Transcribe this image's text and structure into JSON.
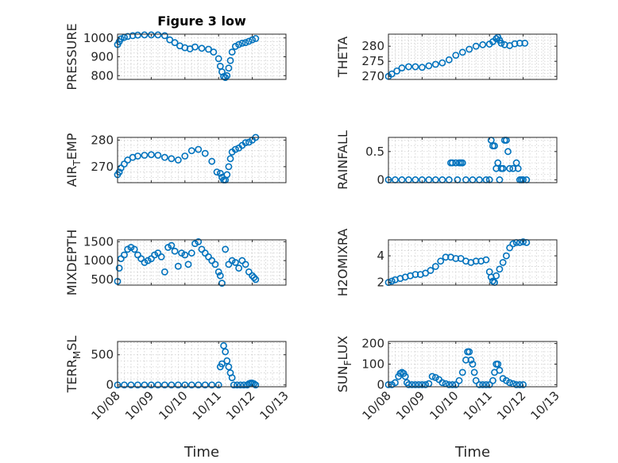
{
  "figure": {
    "background": "#ffffff",
    "marker_color": "#0072bd",
    "grid": true
  },
  "chart_data": [
    {
      "id": "pressure",
      "type": "scatter",
      "title": "Figure 3 low",
      "ylabel": "PRESSURE",
      "ylabel_sub": "",
      "ylim": [
        780,
        1020
      ],
      "yticks": [
        800,
        900,
        1000
      ],
      "xlim": [
        0,
        5
      ],
      "xticks": [
        "10/08",
        "10/09",
        "10/10",
        "10/11",
        "10/12",
        "10/13"
      ],
      "xlabel": "",
      "x": [
        0,
        0.05,
        0.1,
        0.2,
        0.3,
        0.45,
        0.6,
        0.8,
        1.0,
        1.2,
        1.4,
        1.55,
        1.7,
        1.85,
        2.0,
        2.15,
        2.3,
        2.5,
        2.7,
        2.85,
        3.0,
        3.05,
        3.1,
        3.15,
        3.2,
        3.25,
        3.3,
        3.35,
        3.4,
        3.5,
        3.6,
        3.7,
        3.8,
        3.9,
        4.0,
        4.1
      ],
      "y": [
        965,
        980,
        995,
        1003,
        1008,
        1012,
        1015,
        1016,
        1016,
        1016,
        1012,
        990,
        975,
        958,
        948,
        942,
        952,
        945,
        940,
        925,
        890,
        850,
        820,
        795,
        790,
        800,
        840,
        880,
        925,
        955,
        965,
        972,
        975,
        982,
        990,
        997
      ]
    },
    {
      "id": "theta",
      "type": "scatter",
      "title": "",
      "ylabel": "THETA",
      "ylabel_sub": "",
      "ylim": [
        269,
        284
      ],
      "yticks": [
        270,
        275,
        280
      ],
      "xlim": [
        0,
        5
      ],
      "xticks": [
        "10/08",
        "10/09",
        "10/10",
        "10/11",
        "10/12",
        "10/13"
      ],
      "xlabel": "",
      "x": [
        0,
        0.1,
        0.25,
        0.4,
        0.6,
        0.8,
        1.0,
        1.2,
        1.4,
        1.6,
        1.8,
        2.0,
        2.2,
        2.4,
        2.6,
        2.8,
        3.0,
        3.1,
        3.2,
        3.25,
        3.3,
        3.35,
        3.45,
        3.6,
        3.75,
        3.9,
        4.05
      ],
      "y": [
        270,
        270.8,
        271.8,
        272.8,
        273.2,
        273.2,
        273,
        273.5,
        274,
        274.5,
        275.5,
        277,
        278,
        279,
        280,
        280.5,
        280.7,
        281.5,
        282.5,
        283,
        282,
        281,
        280.5,
        280.2,
        280.8,
        281,
        281
      ]
    },
    {
      "id": "air_temp",
      "type": "scatter",
      "title": "",
      "ylabel": "AIR",
      "ylabel_sub": "T",
      "ylabel_suffix": "EMP",
      "ylim": [
        264,
        281
      ],
      "yticks": [
        270,
        280
      ],
      "xlim": [
        0,
        5
      ],
      "xticks": [
        "10/08",
        "10/09",
        "10/10",
        "10/11",
        "10/12",
        "10/13"
      ],
      "xlabel": "",
      "x": [
        0,
        0.05,
        0.1,
        0.2,
        0.3,
        0.45,
        0.6,
        0.8,
        1.0,
        1.2,
        1.4,
        1.6,
        1.8,
        2.0,
        2.2,
        2.4,
        2.6,
        2.8,
        2.95,
        3.05,
        3.1,
        3.15,
        3.2,
        3.25,
        3.3,
        3.35,
        3.4,
        3.5,
        3.6,
        3.7,
        3.8,
        3.9,
        4.0,
        4.1
      ],
      "y": [
        267,
        268,
        269.5,
        271,
        272.5,
        273.5,
        274,
        274.3,
        274.5,
        274.3,
        273.5,
        273,
        272.5,
        274,
        276,
        276.5,
        275,
        272,
        268,
        267.5,
        266,
        265,
        265,
        267,
        270,
        273,
        275.5,
        276.5,
        277,
        278,
        279,
        279.2,
        280,
        281
      ]
    },
    {
      "id": "rainfall",
      "type": "scatter",
      "title": "",
      "ylabel": "RAINFALL",
      "ylabel_sub": "",
      "ylim": [
        -0.05,
        0.75
      ],
      "yticks": [
        0,
        0.5
      ],
      "ytick_labels": [
        "0",
        "0.5"
      ],
      "xlim": [
        0,
        5
      ],
      "xticks": [
        "10/08",
        "10/09",
        "10/10",
        "10/11",
        "10/12",
        "10/13"
      ],
      "xlabel": "",
      "x": [
        0,
        0.2,
        0.4,
        0.6,
        0.8,
        1.0,
        1.2,
        1.4,
        1.6,
        1.8,
        1.85,
        1.9,
        2.0,
        2.05,
        2.1,
        2.15,
        2.2,
        2.3,
        2.5,
        2.7,
        2.9,
        3.0,
        3.05,
        3.1,
        3.15,
        3.2,
        3.25,
        3.3,
        3.35,
        3.4,
        3.45,
        3.5,
        3.55,
        3.6,
        3.7,
        3.8,
        3.85,
        3.9,
        3.95,
        4.0,
        4.1
      ],
      "y": [
        0,
        0,
        0,
        0,
        0,
        0,
        0,
        0,
        0,
        0,
        0.3,
        0.3,
        0.3,
        0,
        0.3,
        0.3,
        0.3,
        0,
        0,
        0,
        0,
        0,
        0.7,
        0.6,
        0.6,
        0.2,
        0.3,
        0,
        0.2,
        0.2,
        0.7,
        0.7,
        0.5,
        0.2,
        0.2,
        0.3,
        0.2,
        0,
        0,
        0,
        0
      ]
    },
    {
      "id": "mixdepth",
      "type": "scatter",
      "title": "",
      "ylabel": "MIXDEPTH",
      "ylabel_sub": "",
      "ylim": [
        350,
        1550
      ],
      "yticks": [
        500,
        1000,
        1500
      ],
      "xlim": [
        0,
        5
      ],
      "xticks": [
        "10/08",
        "10/09",
        "10/10",
        "10/11",
        "10/12",
        "10/13"
      ],
      "xlabel": "",
      "x": [
        0,
        0.05,
        0.1,
        0.2,
        0.3,
        0.4,
        0.5,
        0.6,
        0.7,
        0.8,
        0.9,
        1.0,
        1.1,
        1.2,
        1.3,
        1.4,
        1.5,
        1.6,
        1.7,
        1.8,
        1.9,
        2.0,
        2.1,
        2.2,
        2.3,
        2.4,
        2.5,
        2.6,
        2.7,
        2.8,
        2.9,
        3.0,
        3.05,
        3.1,
        3.2,
        3.3,
        3.4,
        3.5,
        3.6,
        3.7,
        3.8,
        3.9,
        4.0,
        4.05,
        4.1
      ],
      "y": [
        450,
        800,
        1050,
        1150,
        1300,
        1350,
        1300,
        1150,
        1050,
        950,
        1000,
        1050,
        1150,
        1200,
        1100,
        700,
        1350,
        1400,
        1250,
        850,
        1200,
        1150,
        900,
        1200,
        1450,
        1500,
        1300,
        1200,
        1100,
        1000,
        900,
        700,
        600,
        400,
        1300,
        900,
        1000,
        950,
        800,
        1000,
        900,
        700,
        600,
        550,
        500
      ]
    },
    {
      "id": "h2omixra",
      "type": "scatter",
      "title": "",
      "ylabel": "H2OMIXRA",
      "ylabel_sub": "",
      "ylim": [
        1.8,
        5.2
      ],
      "yticks": [
        2,
        4
      ],
      "xlim": [
        0,
        5
      ],
      "xticks": [
        "10/08",
        "10/09",
        "10/10",
        "10/11",
        "10/12",
        "10/13"
      ],
      "xlabel": "",
      "x": [
        0,
        0.1,
        0.2,
        0.35,
        0.5,
        0.65,
        0.8,
        0.95,
        1.1,
        1.25,
        1.4,
        1.55,
        1.7,
        1.85,
        2.0,
        2.15,
        2.3,
        2.45,
        2.6,
        2.75,
        2.9,
        3.0,
        3.05,
        3.1,
        3.15,
        3.2,
        3.3,
        3.4,
        3.5,
        3.6,
        3.7,
        3.8,
        3.9,
        4.0,
        4.1
      ],
      "y": [
        2.0,
        2.1,
        2.2,
        2.3,
        2.4,
        2.5,
        2.6,
        2.6,
        2.7,
        2.9,
        3.2,
        3.6,
        3.9,
        3.9,
        3.8,
        3.8,
        3.6,
        3.5,
        3.6,
        3.6,
        3.7,
        2.8,
        2.4,
        2.1,
        2.0,
        2.5,
        3.0,
        3.5,
        4.0,
        4.6,
        4.9,
        5.0,
        5.0,
        5.05,
        5.0
      ]
    },
    {
      "id": "terr_msl",
      "type": "scatter",
      "title": "",
      "ylabel": "TERR",
      "ylabel_sub": "M",
      "ylabel_suffix": "SL",
      "ylim": [
        -30,
        720
      ],
      "yticks": [
        0,
        500
      ],
      "xlim": [
        0,
        5
      ],
      "xticks": [
        "10/08",
        "10/09",
        "10/10",
        "10/11",
        "10/12",
        "10/13"
      ],
      "xlabel": "Time",
      "x": [
        0,
        0.2,
        0.4,
        0.6,
        0.8,
        1.0,
        1.2,
        1.4,
        1.6,
        1.8,
        2.0,
        2.2,
        2.4,
        2.6,
        2.8,
        3.0,
        3.05,
        3.1,
        3.15,
        3.2,
        3.25,
        3.3,
        3.35,
        3.4,
        3.45,
        3.55,
        3.65,
        3.75,
        3.85,
        3.9,
        3.95,
        4.0,
        4.05,
        4.1
      ],
      "y": [
        0,
        0,
        0,
        0,
        0,
        0,
        0,
        0,
        0,
        0,
        0,
        0,
        0,
        0,
        0,
        0,
        300,
        350,
        650,
        550,
        400,
        300,
        200,
        120,
        0,
        0,
        0,
        0,
        0,
        20,
        30,
        30,
        20,
        0
      ]
    },
    {
      "id": "sun_flux",
      "type": "scatter",
      "title": "",
      "ylabel": "SUN",
      "ylabel_sub": "F",
      "ylabel_suffix": "LUX",
      "ylim": [
        -10,
        210
      ],
      "yticks": [
        0,
        100,
        200
      ],
      "xlim": [
        0,
        5
      ],
      "xticks": [
        "10/08",
        "10/09",
        "10/10",
        "10/11",
        "10/12",
        "10/13"
      ],
      "xlabel": "Time",
      "x": [
        0,
        0.1,
        0.2,
        0.3,
        0.35,
        0.4,
        0.45,
        0.5,
        0.55,
        0.6,
        0.7,
        0.8,
        0.9,
        1.0,
        1.1,
        1.2,
        1.3,
        1.4,
        1.5,
        1.6,
        1.7,
        1.8,
        1.9,
        2.0,
        2.1,
        2.2,
        2.3,
        2.35,
        2.4,
        2.45,
        2.5,
        2.55,
        2.6,
        2.7,
        2.8,
        2.9,
        3.0,
        3.1,
        3.15,
        3.2,
        3.25,
        3.3,
        3.4,
        3.5,
        3.6,
        3.7,
        3.8,
        3.9,
        4.0
      ],
      "y": [
        0,
        0,
        10,
        40,
        55,
        60,
        55,
        40,
        10,
        0,
        0,
        0,
        0,
        0,
        0,
        5,
        40,
        35,
        25,
        10,
        5,
        0,
        0,
        0,
        20,
        60,
        120,
        160,
        160,
        120,
        100,
        60,
        20,
        0,
        0,
        0,
        0,
        20,
        60,
        100,
        100,
        70,
        30,
        20,
        10,
        5,
        0,
        0,
        0
      ]
    }
  ]
}
